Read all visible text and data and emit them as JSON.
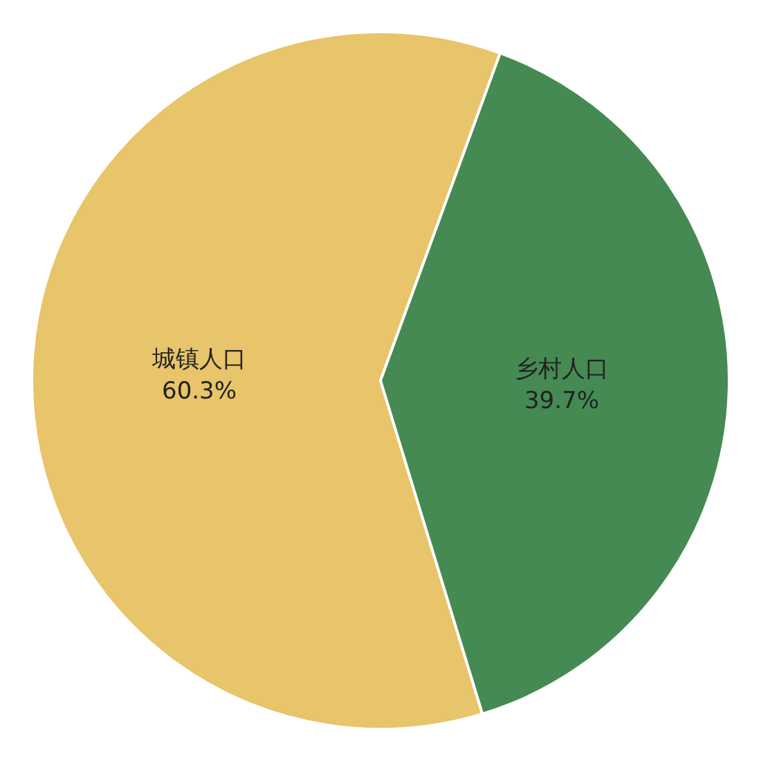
{
  "chart_data": {
    "type": "pie",
    "categories": [
      "城镇人口",
      "乡村人口"
    ],
    "values": [
      60.3,
      39.7
    ],
    "colors": [
      "#e8c46a",
      "#458a52"
    ],
    "value_labels": [
      "60.3%",
      "39.7%"
    ],
    "legend": false
  }
}
